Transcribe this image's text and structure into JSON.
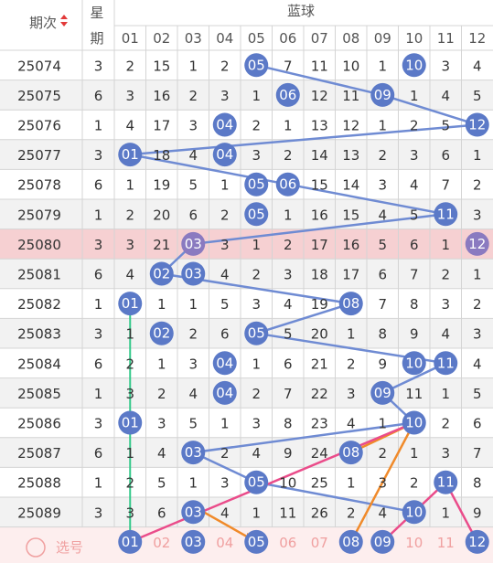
{
  "header": {
    "period_label": "期次",
    "weekday_label_top": "星",
    "weekday_label_bottom": "期",
    "blue_label": "蓝球"
  },
  "footer": {
    "select_label": "选号"
  },
  "colors": {
    "ball": "#5b79c7",
    "trend_line": "#6f8bd3",
    "row_stripe": "#f2f2f2",
    "highlight_row": "#f6d0d2",
    "footer_row": "#fdeeee",
    "footer_text": "#f0a0a0",
    "green_line": "#35c98a",
    "orange_line": "#f08a2a",
    "pink_line": "#ea4c8a",
    "grid": "#d4d4d4",
    "text": "#333333",
    "header_text": "#555555"
  },
  "chart_data": {
    "type": "table",
    "columns": [
      "01",
      "02",
      "03",
      "04",
      "05",
      "06",
      "07",
      "08",
      "09",
      "10",
      "11",
      "12"
    ],
    "highlight_period": "25080",
    "rows": [
      {
        "period": "25074",
        "weekday": "3",
        "blue": 5,
        "cells": [
          "2",
          "15",
          "1",
          "2",
          "05",
          "7",
          "11",
          "10",
          "1",
          "10",
          "3",
          "4"
        ]
      },
      {
        "period": "25075",
        "weekday": "6",
        "blue": 9,
        "cells": [
          "3",
          "16",
          "2",
          "3",
          "1",
          "06",
          "12",
          "11",
          "09",
          "1",
          "4",
          "5"
        ]
      },
      {
        "period": "25076",
        "weekday": "1",
        "blue": 12,
        "cells": [
          "4",
          "17",
          "3",
          "04",
          "2",
          "1",
          "13",
          "12",
          "1",
          "2",
          "5",
          "12"
        ]
      },
      {
        "period": "25077",
        "weekday": "3",
        "blue": 1,
        "cells": [
          "01",
          "18",
          "4",
          "04",
          "3",
          "2",
          "14",
          "13",
          "2",
          "3",
          "6",
          "1"
        ]
      },
      {
        "period": "25078",
        "weekday": "6",
        "blue": 6,
        "cells": [
          "1",
          "19",
          "5",
          "1",
          "05",
          "06",
          "15",
          "14",
          "3",
          "4",
          "7",
          "2"
        ]
      },
      {
        "period": "25079",
        "weekday": "1",
        "blue": 11,
        "cells": [
          "2",
          "20",
          "6",
          "2",
          "05",
          "1",
          "16",
          "15",
          "4",
          "5",
          "11",
          "3"
        ]
      },
      {
        "period": "25080",
        "weekday": "3",
        "blue": 3,
        "cells": [
          "3",
          "21",
          "03",
          "3",
          "1",
          "2",
          "17",
          "16",
          "5",
          "6",
          "1",
          "12"
        ]
      },
      {
        "period": "25081",
        "weekday": "6",
        "blue": 2,
        "cells": [
          "4",
          "02",
          "03",
          "4",
          "2",
          "3",
          "18",
          "17",
          "6",
          "7",
          "2",
          "1"
        ]
      },
      {
        "period": "25082",
        "weekday": "1",
        "blue": 8,
        "cells": [
          "01",
          "1",
          "1",
          "5",
          "3",
          "4",
          "19",
          "08",
          "7",
          "8",
          "3",
          "2"
        ]
      },
      {
        "period": "25083",
        "weekday": "3",
        "blue": 5,
        "cells": [
          "1",
          "02",
          "2",
          "6",
          "05",
          "5",
          "20",
          "1",
          "8",
          "9",
          "4",
          "3"
        ]
      },
      {
        "period": "25084",
        "weekday": "6",
        "blue": 11,
        "cells": [
          "2",
          "1",
          "3",
          "04",
          "1",
          "6",
          "21",
          "2",
          "9",
          "10",
          "11",
          "4"
        ]
      },
      {
        "period": "25085",
        "weekday": "1",
        "blue": 9,
        "cells": [
          "3",
          "2",
          "4",
          "04",
          "2",
          "7",
          "22",
          "3",
          "09",
          "11",
          "1",
          "5"
        ]
      },
      {
        "period": "25086",
        "weekday": "3",
        "blue": 10,
        "cells": [
          "01",
          "3",
          "5",
          "1",
          "3",
          "8",
          "23",
          "4",
          "1",
          "10",
          "2",
          "6"
        ]
      },
      {
        "period": "25087",
        "weekday": "6",
        "blue": 3,
        "cells": [
          "1",
          "4",
          "03",
          "2",
          "4",
          "9",
          "24",
          "08",
          "2",
          "1",
          "3",
          "7"
        ]
      },
      {
        "period": "25088",
        "weekday": "1",
        "blue": 5,
        "cells": [
          "2",
          "5",
          "1",
          "3",
          "05",
          "10",
          "25",
          "1",
          "3",
          "2",
          "11",
          "8"
        ]
      },
      {
        "period": "25089",
        "weekday": "3",
        "blue": 10,
        "cells": [
          "3",
          "6",
          "03",
          "4",
          "1",
          "11",
          "26",
          "2",
          "4",
          "10",
          "1",
          "9"
        ]
      }
    ],
    "selection": [
      "01",
      "02",
      "03",
      "04",
      "05",
      "06",
      "07",
      "08",
      "09",
      "10",
      "11",
      "12"
    ],
    "selected": [
      "01",
      "03",
      "05",
      "08",
      "09",
      "12"
    ]
  }
}
